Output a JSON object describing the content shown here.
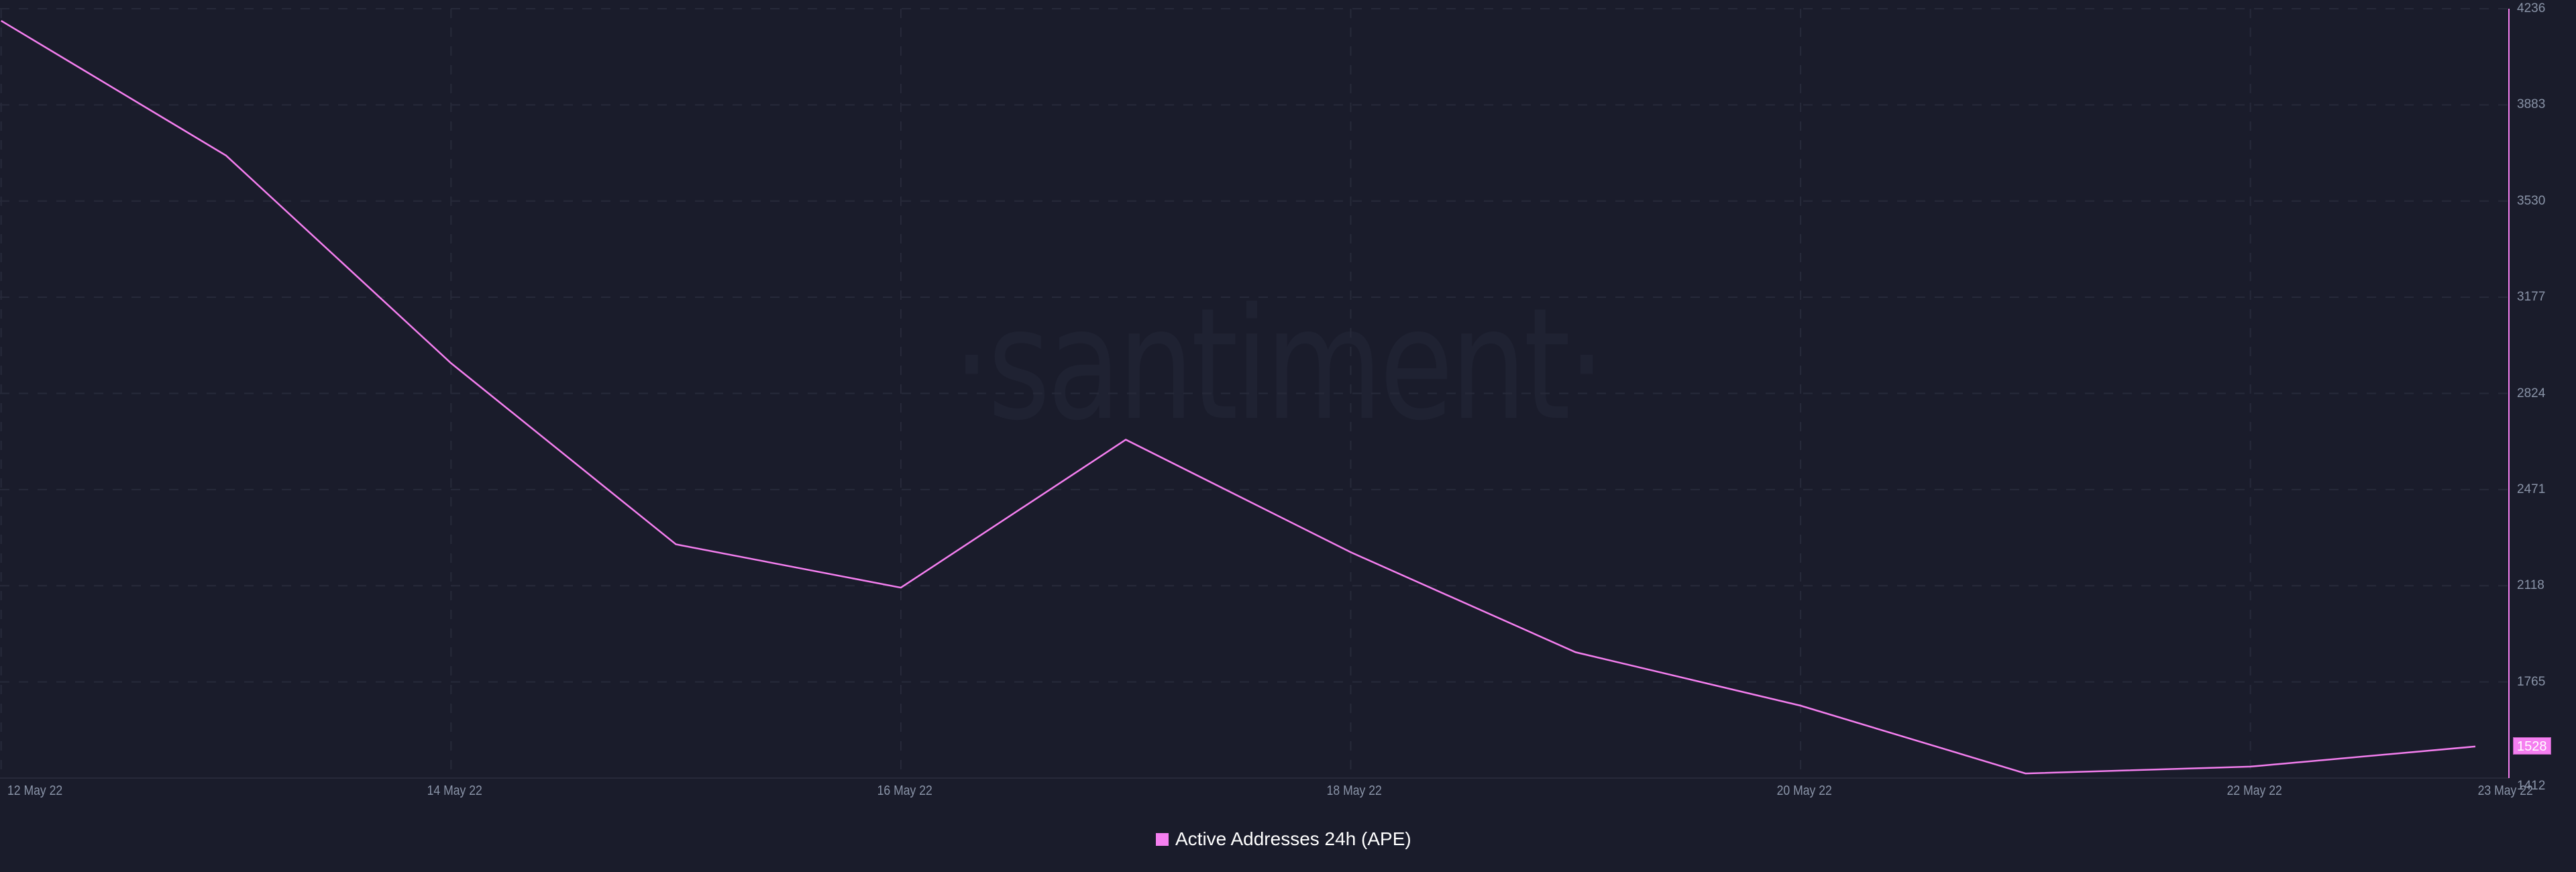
{
  "chart_data": {
    "type": "line",
    "title": "",
    "xlabel": "",
    "ylabel": "",
    "x": [
      "12 May 22",
      "13 May 22",
      "14 May 22",
      "15 May 22",
      "16 May 22",
      "17 May 22",
      "18 May 22",
      "19 May 22",
      "20 May 22",
      "21 May 22",
      "22 May 22",
      "23 May 22"
    ],
    "series": [
      {
        "name": "Active Addresses 24h (APE)",
        "color": "#f57ff0",
        "values": [
          4192,
          3697,
          2935,
          2270,
          2111,
          2654,
          2241,
          1874,
          1678,
          1429,
          1454,
          1528
        ]
      }
    ],
    "ylim": [
      1412,
      4236
    ],
    "y_ticks": [
      "4236",
      "3883",
      "3530",
      "3177",
      "2824",
      "2471",
      "2118",
      "1765",
      "1412"
    ],
    "x_ticks": [
      "12 May 22",
      "14 May 22",
      "16 May 22",
      "18 May 22",
      "20 May 22",
      "22 May 22",
      "23 May 22"
    ],
    "grid": true,
    "legend_position": "bottom-center",
    "y_axis_position": "right",
    "last_value_label": "1528",
    "watermark": "·santiment·"
  },
  "colors": {
    "background": "#1a1c2b",
    "line": "#f57ff0",
    "grid": "#272a3a",
    "tick_text": "#8a94a8",
    "watermark": "#1f2232"
  }
}
